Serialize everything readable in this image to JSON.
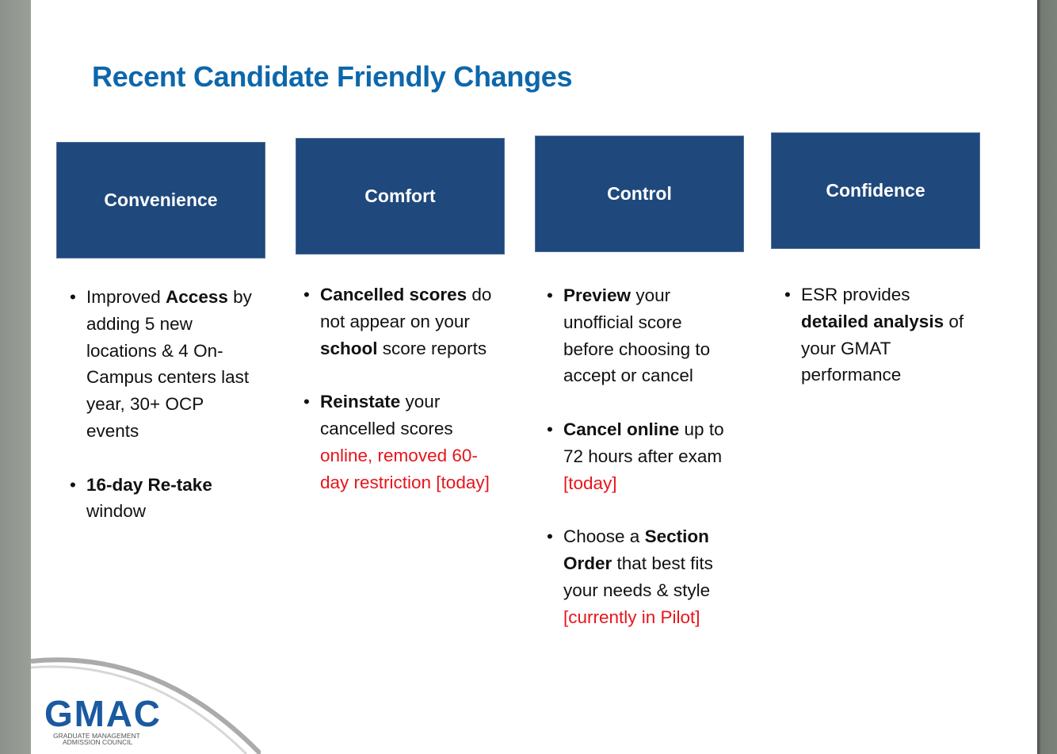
{
  "title": "Recent Candidate Friendly Changes",
  "colors": {
    "title": "#0d67ab",
    "box": "#1f487c",
    "highlight": "#e8141b"
  },
  "columns": [
    {
      "heading": "Convenience",
      "bullets": [
        [
          {
            "t": "Improved "
          },
          {
            "t": "Access",
            "s": "b"
          },
          {
            "t": " by adding 5 new locations & 4 On-Campus centers last year, 30+ OCP events"
          }
        ],
        [
          {
            "t": "16-day Re-take",
            "s": "b"
          },
          {
            "t": " window"
          }
        ]
      ]
    },
    {
      "heading": "Comfort",
      "bullets": [
        [
          {
            "t": "Cancelled scores",
            "s": "b"
          },
          {
            "t": " do not appear on your "
          },
          {
            "t": "school",
            "s": "b"
          },
          {
            "t": " score reports"
          }
        ],
        [
          {
            "t": "Reinstate",
            "s": "b"
          },
          {
            "t": " your cancelled scores "
          },
          {
            "t": "online, removed 60-day restriction [today]",
            "s": "r"
          }
        ]
      ]
    },
    {
      "heading": "Control",
      "bullets": [
        [
          {
            "t": "Preview",
            "s": "b"
          },
          {
            "t": " your unofficial score before choosing to accept or cancel"
          }
        ],
        [
          {
            "t": "Cancel online",
            "s": "b"
          },
          {
            "t": " up to 72 hours after exam "
          },
          {
            "t": "[today]",
            "s": "r"
          }
        ],
        [
          {
            "t": "Choose a "
          },
          {
            "t": "Section Order",
            "s": "b"
          },
          {
            "t": " that best fits your needs & style  "
          },
          {
            "t": "[currently in Pilot]",
            "s": "r"
          }
        ]
      ]
    },
    {
      "heading": "Confidence",
      "bullets": [
        [
          {
            "t": "ESR provides "
          },
          {
            "t": "detailed analysis",
            "s": "b"
          },
          {
            "t": " of your GMAT performance"
          }
        ]
      ]
    }
  ],
  "logo": {
    "name": "GMAC",
    "subtitle_line1": "GRADUATE MANAGEMENT",
    "subtitle_line2": "ADMISSION COUNCIL"
  }
}
